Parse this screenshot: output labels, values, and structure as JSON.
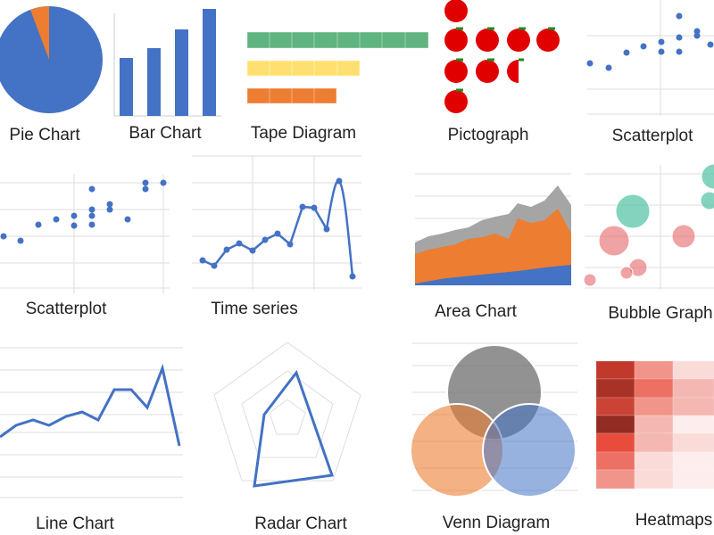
{
  "tiles": [
    {
      "label": "Pie Chart"
    },
    {
      "label": "Bar Chart"
    },
    {
      "label": "Tape Diagram"
    },
    {
      "label": "Pictograph"
    },
    {
      "label": "Scatterplot"
    },
    {
      "label": "Scatterplot"
    },
    {
      "label": "Time series"
    },
    {
      "label": "Area Chart"
    },
    {
      "label": "Bubble Graph"
    },
    {
      "label": "Line Chart"
    },
    {
      "label": "Radar Chart"
    },
    {
      "label": "Venn Diagram"
    },
    {
      "label": "Heatmaps"
    }
  ]
}
